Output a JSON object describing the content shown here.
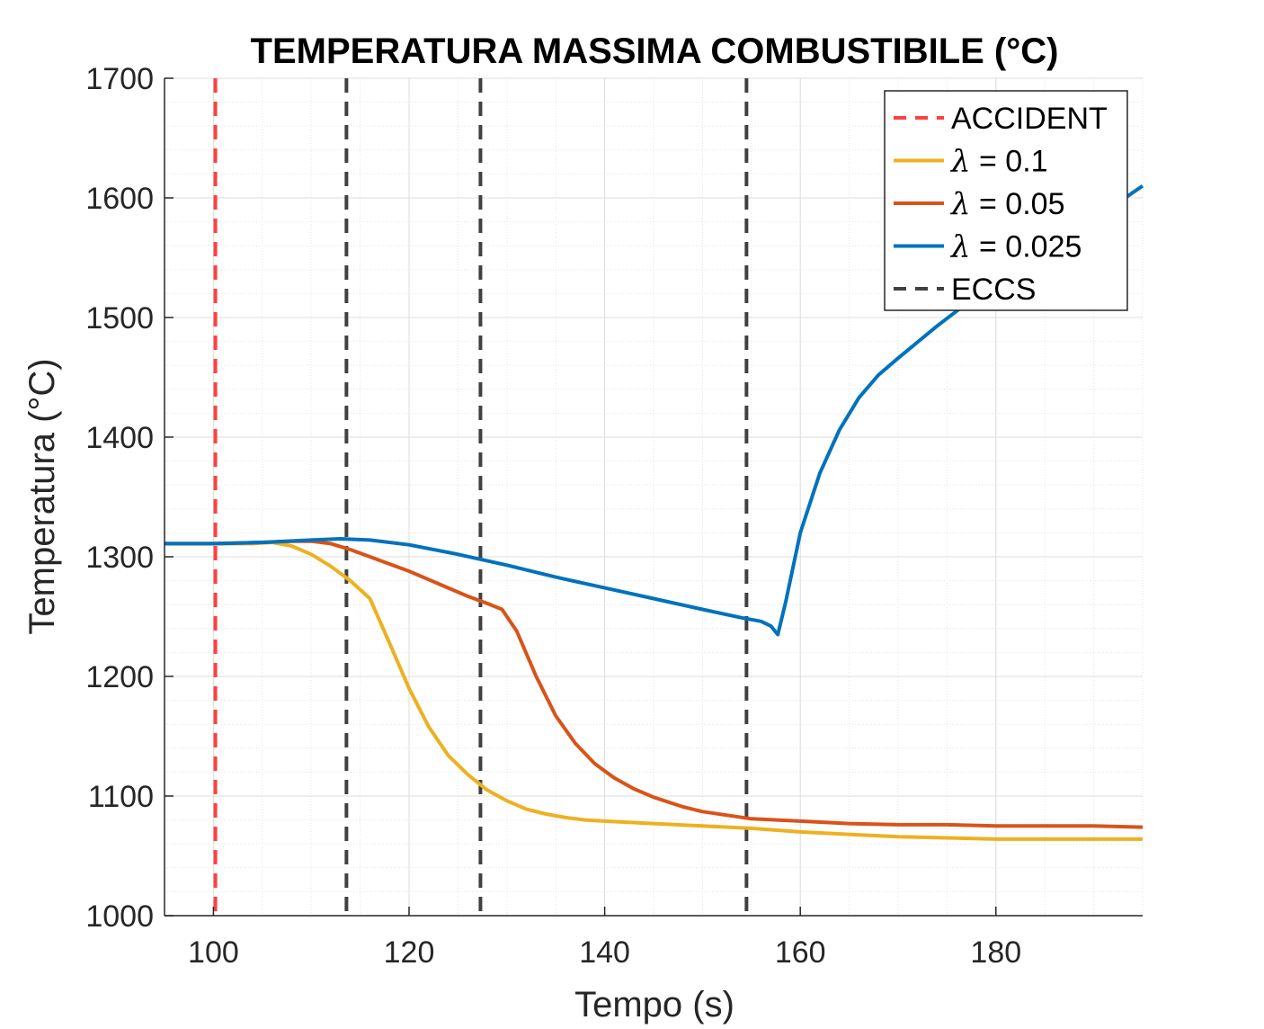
{
  "chart_data": {
    "type": "line",
    "title": "TEMPERATURA MASSIMA COMBUSTIBILE (°C)",
    "xlabel": "Tempo (s)",
    "ylabel": "Temperatura (°C)",
    "xlim": [
      95,
      195
    ],
    "ylim": [
      1000,
      1700
    ],
    "xticks": [
      100,
      120,
      140,
      160,
      180
    ],
    "yticks": [
      1000,
      1100,
      1200,
      1300,
      1400,
      1500,
      1600,
      1700
    ],
    "grid": true,
    "legend_position": "top-right",
    "colors": {
      "accident": "#ff4040",
      "lambda_01": "#edb120",
      "lambda_005": "#d95319",
      "lambda_0025": "#0072bd",
      "eccs": "#404040"
    },
    "series": [
      {
        "name": "λ = 0.1",
        "symbol": "λ",
        "value_label": " = 0.1",
        "color": "#edb120",
        "x": [
          95,
          100,
          104,
          106,
          108,
          110,
          112,
          114,
          116,
          118,
          120,
          122,
          124,
          126,
          128,
          130,
          132,
          134,
          136,
          138,
          140,
          145,
          150,
          155,
          160,
          165,
          170,
          175,
          180,
          185,
          190,
          195
        ],
        "y": [
          1311,
          1311,
          1311,
          1312,
          1309,
          1302,
          1292,
          1280,
          1265,
          1228,
          1190,
          1158,
          1134,
          1118,
          1105,
          1096,
          1089,
          1085,
          1082,
          1080,
          1079,
          1077,
          1075,
          1073,
          1070,
          1068,
          1066,
          1065,
          1064,
          1064,
          1064,
          1064
        ]
      },
      {
        "name": "λ = 0.05",
        "symbol": "λ",
        "value_label": " = 0.05",
        "color": "#d95319",
        "x": [
          95,
          100,
          105,
          108,
          110,
          112,
          114,
          116,
          118,
          120,
          122,
          124,
          126,
          128,
          129.5,
          131,
          133,
          135,
          137,
          139,
          141,
          143,
          145,
          148,
          150,
          155,
          160,
          165,
          170,
          175,
          180,
          185,
          190,
          195
        ],
        "y": [
          1311,
          1311,
          1312,
          1313,
          1313,
          1311,
          1306,
          1300,
          1294,
          1288,
          1281,
          1274,
          1267,
          1261,
          1256,
          1238,
          1200,
          1167,
          1144,
          1127,
          1115,
          1106,
          1099,
          1091,
          1087,
          1081,
          1079,
          1077,
          1076,
          1076,
          1075,
          1075,
          1075,
          1074
        ]
      },
      {
        "name": "λ = 0.025",
        "symbol": "λ",
        "value_label": " = 0.025",
        "color": "#0072bd",
        "x": [
          95,
          100,
          105,
          110,
          113,
          116,
          120,
          125,
          130,
          135,
          140,
          145,
          150,
          154,
          156,
          157,
          157.7,
          158.5,
          160,
          162,
          164,
          166,
          168,
          170,
          174,
          178,
          182,
          186,
          190,
          195
        ],
        "y": [
          1311,
          1311,
          1312,
          1314,
          1315,
          1314,
          1310,
          1302,
          1293,
          1283,
          1274,
          1265,
          1256,
          1249,
          1246,
          1242,
          1235,
          1262,
          1320,
          1370,
          1406,
          1433,
          1452,
          1466,
          1493,
          1518,
          1540,
          1562,
          1582,
          1610
        ]
      }
    ],
    "vlines": [
      {
        "name": "ACCIDENT",
        "x": 100.2,
        "color": "#ff4040",
        "in_legend": true
      },
      {
        "name": "ECCS",
        "x": 113.6,
        "color": "#404040",
        "in_legend": true
      },
      {
        "name": "ECCS",
        "x": 127.3,
        "color": "#404040",
        "in_legend": false
      },
      {
        "name": "ECCS",
        "x": 154.5,
        "color": "#404040",
        "in_legend": false
      }
    ],
    "legend": [
      {
        "label": "ACCIDENT",
        "style": "dashed",
        "color": "#ff4040"
      },
      {
        "label": " = 0.1",
        "symbol": "λ",
        "style": "solid",
        "color": "#edb120"
      },
      {
        "label": " = 0.05",
        "symbol": "λ",
        "style": "solid",
        "color": "#d95319"
      },
      {
        "label": " = 0.025",
        "symbol": "λ",
        "style": "solid",
        "color": "#0072bd"
      },
      {
        "label": "ECCS",
        "style": "dashed",
        "color": "#404040"
      }
    ]
  }
}
